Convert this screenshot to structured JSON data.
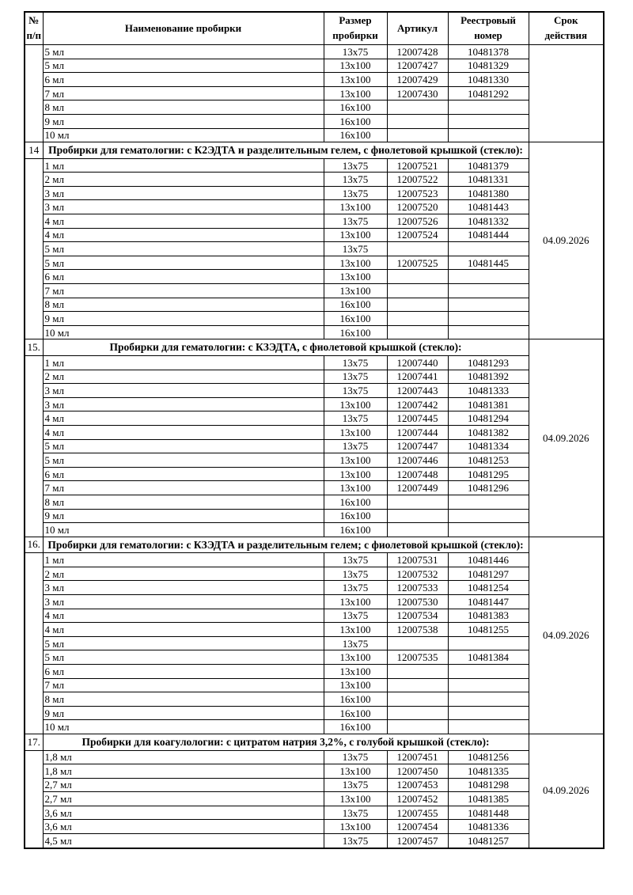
{
  "page": {
    "background": "#ffffff",
    "text_color": "#000000",
    "border_color": "#000000"
  },
  "table": {
    "headers": [
      "№\nп/п",
      "Наименование пробирки",
      "Размер\nпробирки",
      "Артикул",
      "Реестровый\nномер",
      "Срок\nдействия"
    ],
    "sections": [
      {
        "number": "",
        "title": "",
        "expiry": "",
        "rows": [
          [
            "5 мл",
            "13x75",
            "12007428",
            "10481378"
          ],
          [
            "5 мл",
            "13x100",
            "12007427",
            "10481329"
          ],
          [
            "6 мл",
            "13x100",
            "12007429",
            "10481330"
          ],
          [
            "7 мл",
            "13x100",
            "12007430",
            "10481292"
          ],
          [
            "8 мл",
            "16x100",
            "",
            ""
          ],
          [
            "9 мл",
            "16x100",
            "",
            ""
          ],
          [
            "10 мл",
            "16x100",
            "",
            ""
          ]
        ]
      },
      {
        "number": "14",
        "title": "Пробирки для гематологии: с К2ЭДТА и разделительным гелем, с фиолетовой крышкой (стекло):",
        "expiry": "04.09.2026",
        "rows": [
          [
            "1 мл",
            "13x75",
            "12007521",
            "10481379"
          ],
          [
            "2 мл",
            "13x75",
            "12007522",
            "10481331"
          ],
          [
            "3 мл",
            "13x75",
            "12007523",
            "10481380"
          ],
          [
            "3 мл",
            "13x100",
            "12007520",
            "10481443"
          ],
          [
            "4 мл",
            "13x75",
            "12007526",
            "10481332"
          ],
          [
            "4 мл",
            "13x100",
            "12007524",
            "10481444"
          ],
          [
            "5 мл",
            "13x75",
            "",
            ""
          ],
          [
            "5 мл",
            "13x100",
            "12007525",
            "10481445"
          ],
          [
            "6 мл",
            "13x100",
            "",
            ""
          ],
          [
            "7 мл",
            "13x100",
            "",
            ""
          ],
          [
            "8 мл",
            "16x100",
            "",
            ""
          ],
          [
            "9 мл",
            "16x100",
            "",
            ""
          ],
          [
            "10 мл",
            "16x100",
            "",
            ""
          ]
        ]
      },
      {
        "number": "15.",
        "title": "Пробирки для гематологии: с КЗЭДТА, с фиолетовой крышкой (стекло):",
        "expiry": "04.09.2026",
        "rows": [
          [
            "1 мл",
            "13x75",
            "12007440",
            "10481293"
          ],
          [
            "2 мл",
            "13x75",
            "12007441",
            "10481392"
          ],
          [
            "3 мл",
            "13x75",
            "12007443",
            "10481333"
          ],
          [
            "3 мл",
            "13x100",
            "12007442",
            "10481381"
          ],
          [
            "4 мл",
            "13x75",
            "12007445",
            "10481294"
          ],
          [
            "4 мл",
            "13x100",
            "12007444",
            "10481382"
          ],
          [
            "5 мл",
            "13x75",
            "12007447",
            "10481334"
          ],
          [
            "5 мл",
            "13x100",
            "12007446",
            "10481253"
          ],
          [
            "6 мл",
            "13x100",
            "12007448",
            "10481295"
          ],
          [
            "7 мл",
            "13x100",
            "12007449",
            "10481296"
          ],
          [
            "8 мл",
            "16x100",
            "",
            ""
          ],
          [
            "9 мл",
            "16x100",
            "",
            ""
          ],
          [
            "10 мл",
            "16x100",
            "",
            ""
          ]
        ]
      },
      {
        "number": "16.",
        "title": "Пробирки для гематологии: с КЗЭДТА и разделительным гелем; с фиолетовой крышкой (стекло):",
        "expiry": "04.09.2026",
        "rows": [
          [
            "1 мл",
            "13x75",
            "12007531",
            "10481446"
          ],
          [
            "2 мл",
            "13x75",
            "12007532",
            "10481297"
          ],
          [
            "3 мл",
            "13x75",
            "12007533",
            "10481254"
          ],
          [
            "3 мл",
            "13x100",
            "12007530",
            "10481447"
          ],
          [
            "4 мл",
            "13x75",
            "12007534",
            "10481383"
          ],
          [
            "4 мл",
            "13x100",
            "12007538",
            "10481255"
          ],
          [
            "5 мл",
            "13x75",
            "",
            ""
          ],
          [
            "5 мл",
            "13x100",
            "12007535",
            "10481384"
          ],
          [
            "6 мл",
            "13x100",
            "",
            ""
          ],
          [
            "7 мл",
            "13x100",
            "",
            ""
          ],
          [
            "8 мл",
            "16x100",
            "",
            ""
          ],
          [
            "9 мл",
            "16x100",
            "",
            ""
          ],
          [
            "10 мл",
            "16x100",
            "",
            ""
          ]
        ]
      },
      {
        "number": "17.",
        "title": "Пробирки для коагулологии: с цитратом натрия 3,2%, с голубой крышкой (стекло):",
        "expiry": "04.09.2026",
        "rows": [
          [
            "1,8 мл",
            "13x75",
            "12007451",
            "10481256"
          ],
          [
            "1,8 мл",
            "13x100",
            "12007450",
            "10481335"
          ],
          [
            "2,7 мл",
            "13x75",
            "12007453",
            "10481298"
          ],
          [
            "2,7 мл",
            "13x100",
            "12007452",
            "10481385"
          ],
          [
            "3,6 мл",
            "13x75",
            "12007455",
            "10481448"
          ],
          [
            "3,6 мл",
            "13x100",
            "12007454",
            "10481336"
          ],
          [
            "4,5 мл",
            "13x75",
            "12007457",
            "10481257"
          ]
        ]
      }
    ]
  }
}
